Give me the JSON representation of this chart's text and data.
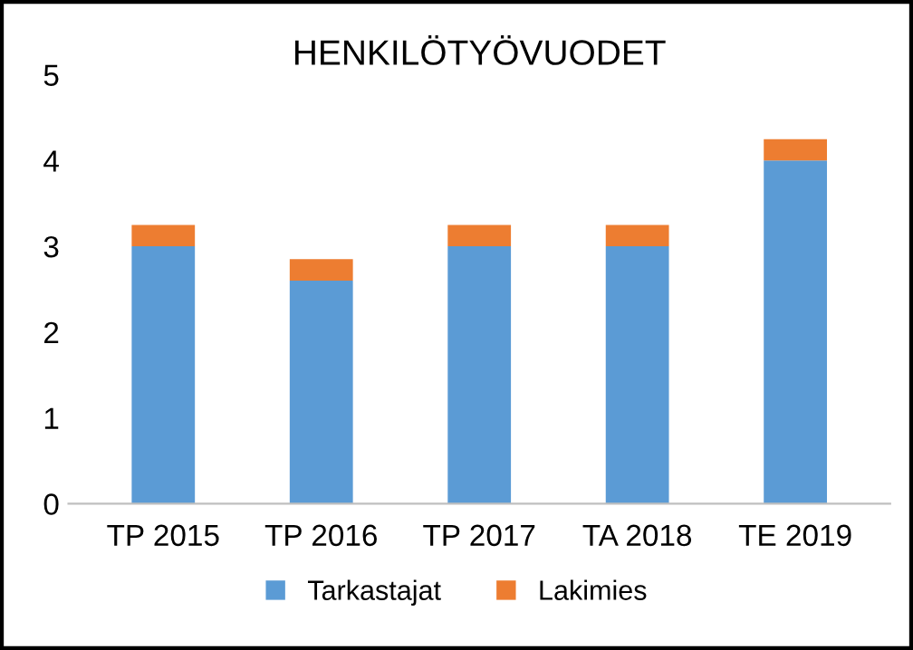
{
  "chart_data": {
    "type": "bar",
    "title": "HENKILÖTYÖVUODET",
    "stacked": true,
    "categories": [
      "TP 2015",
      "TP 2016",
      "TP 2017",
      "TA 2018",
      "TE 2019"
    ],
    "series": [
      {
        "name": "Tarkastajat",
        "color": "#5b9bd5",
        "values": [
          3,
          2.6,
          3,
          3,
          4
        ]
      },
      {
        "name": "Lakimies",
        "color": "#ed7d31",
        "values": [
          0.25,
          0.25,
          0.25,
          0.25,
          0.25
        ]
      }
    ],
    "ylim": [
      0,
      5
    ],
    "yticks": [
      0,
      1,
      2,
      3,
      4,
      5
    ],
    "grid": false,
    "legend": "bottom"
  }
}
